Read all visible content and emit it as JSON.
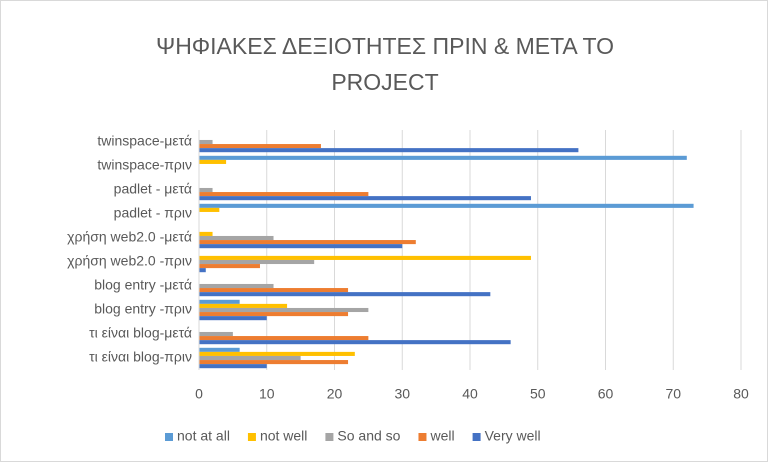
{
  "chart_data": {
    "type": "bar",
    "orientation": "horizontal",
    "title": "ΨΗΦΙΑΚΕΣ ΔΕΞΙΟΤΗΤΕΣ ΠΡΙΝ & ΜΕΤΑ ΤΟ PROJECT",
    "categories": [
      "twinspace-μετά",
      "twinspace-πριν",
      "padlet - μετά",
      "padlet - πριν",
      "χρήση web2.0 -μετά",
      "χρήση web2.0 -πριν",
      "blog entry -μετά",
      "blog entry -πριν",
      "τι είναι blog-μετά",
      "τι είναι blog-πριν"
    ],
    "series": [
      {
        "name": "not at all",
        "color": "#5b9bd5",
        "values": [
          0,
          72,
          0,
          73,
          0,
          0,
          0,
          6,
          0,
          6
        ]
      },
      {
        "name": "not well",
        "color": "#ffc000",
        "values": [
          0,
          4,
          0,
          3,
          2,
          49,
          0,
          13,
          0,
          23
        ]
      },
      {
        "name": "So and so",
        "color": "#a5a5a5",
        "values": [
          2,
          0,
          2,
          0,
          11,
          17,
          11,
          25,
          5,
          15
        ]
      },
      {
        "name": "well",
        "color": "#ed7d31",
        "values": [
          18,
          0,
          25,
          0,
          32,
          9,
          22,
          22,
          25,
          22
        ]
      },
      {
        "name": "Very well",
        "color": "#4472c4",
        "values": [
          56,
          0,
          49,
          0,
          30,
          1,
          43,
          10,
          46,
          10
        ]
      }
    ],
    "xlim": [
      0,
      80
    ],
    "xticks": [
      0,
      10,
      20,
      30,
      40,
      50,
      60,
      70,
      80
    ],
    "grid": true,
    "legend": "bottom"
  }
}
